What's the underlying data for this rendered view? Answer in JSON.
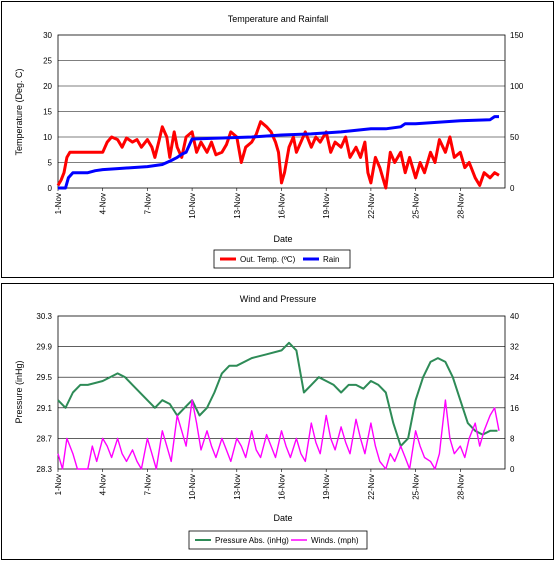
{
  "chart_data": [
    {
      "type": "line",
      "title": "Temperature and Rainfall",
      "xlabel": "Date",
      "ylabel": "Temperature (Deg. C)",
      "y2label": "",
      "ylim": [
        0,
        30
      ],
      "y2lim": [
        0,
        150
      ],
      "yticks": [
        "0",
        "5",
        "10",
        "15",
        "20",
        "25",
        "30"
      ],
      "y2ticks": [
        "0",
        "50",
        "100",
        "150"
      ],
      "xlim": [
        1,
        31
      ],
      "xticks": [
        {
          "day": 1,
          "label": "1-Nov"
        },
        {
          "day": 4,
          "label": "4-Nov"
        },
        {
          "day": 7,
          "label": "7-Nov"
        },
        {
          "day": 10,
          "label": "10-Nov"
        },
        {
          "day": 13,
          "label": "13-Nov"
        },
        {
          "day": 16,
          "label": "16-Nov"
        },
        {
          "day": 19,
          "label": "19-Nov"
        },
        {
          "day": 22,
          "label": "22-Nov"
        },
        {
          "day": 25,
          "label": "25-Nov"
        },
        {
          "day": 28,
          "label": "28-Nov"
        }
      ],
      "grid": true,
      "legend": "bottom",
      "series": [
        {
          "name": "Out. Temp. (ºC)",
          "axis": "left",
          "color": "#ff0000",
          "x": [
            1.0,
            1.2,
            1.4,
            1.6,
            1.8,
            2.0,
            2.5,
            3.0,
            3.5,
            4.0,
            4.3,
            4.6,
            5.0,
            5.3,
            5.6,
            6.0,
            6.3,
            6.6,
            7.0,
            7.3,
            7.5,
            7.8,
            8.0,
            8.3,
            8.5,
            8.8,
            9.0,
            9.3,
            9.6,
            10.0,
            10.3,
            10.6,
            11.0,
            11.3,
            11.6,
            12.0,
            12.3,
            12.6,
            13.0,
            13.3,
            13.6,
            14.0,
            14.3,
            14.6,
            15.0,
            15.3,
            15.6,
            15.8,
            16.0,
            16.2,
            16.5,
            16.8,
            17.0,
            17.3,
            17.6,
            18.0,
            18.3,
            18.6,
            19.0,
            19.3,
            19.6,
            20.0,
            20.3,
            20.6,
            21.0,
            21.3,
            21.6,
            21.8,
            22.0,
            22.3,
            22.6,
            23.0,
            23.3,
            23.6,
            24.0,
            24.3,
            24.6,
            25.0,
            25.3,
            25.6,
            26.0,
            26.3,
            26.6,
            27.0,
            27.3,
            27.6,
            28.0,
            28.3,
            28.6,
            29.0,
            29.3,
            29.6,
            30.0,
            30.3,
            30.6
          ],
          "values": [
            0.5,
            1.5,
            3,
            6,
            7,
            7,
            7,
            7,
            7,
            7,
            9,
            10,
            9.5,
            8,
            9.8,
            9,
            9.5,
            8,
            9.5,
            8,
            6,
            9.5,
            12,
            10,
            6,
            11,
            8,
            6,
            10,
            11,
            7,
            9,
            7,
            9,
            6.5,
            7,
            8.5,
            11,
            10,
            5,
            8,
            9,
            10.5,
            13,
            12,
            11,
            9,
            7,
            1,
            3,
            8,
            10,
            7,
            9,
            11,
            8,
            10,
            9,
            11,
            7,
            9,
            8,
            10,
            6,
            8,
            6,
            9,
            3,
            1,
            6,
            4,
            0,
            7,
            5,
            7,
            3,
            6,
            2,
            5,
            3,
            7,
            5,
            9.5,
            7,
            10,
            6,
            7,
            4,
            5,
            2,
            0.5,
            3,
            2,
            3,
            2.5
          ]
        },
        {
          "name": "Rain",
          "axis": "right",
          "color": "#0000ff",
          "x": [
            1.0,
            1.5,
            1.7,
            2.0,
            3.0,
            3.5,
            4.0,
            5.0,
            6.0,
            7.0,
            8.0,
            8.3,
            8.6,
            9.0,
            9.3,
            9.6,
            10.0,
            12.0,
            14.0,
            16.0,
            18.0,
            20.0,
            22.0,
            23.0,
            24.0,
            24.3,
            25.0,
            26.0,
            28.0,
            30.0,
            30.3,
            30.6
          ],
          "values": [
            0,
            0,
            10,
            15,
            15,
            17,
            18,
            19,
            20,
            21,
            23,
            25,
            27,
            30,
            33,
            35,
            48,
            49,
            50,
            52,
            53,
            55,
            58,
            58,
            60,
            63,
            63,
            64,
            66,
            67,
            70,
            70
          ]
        }
      ]
    },
    {
      "type": "line",
      "title": "Wind and Pressure",
      "xlabel": "Date",
      "ylabel": "Pressure (inHg)",
      "y2label": "",
      "ylim": [
        28.3,
        30.3
      ],
      "y2lim": [
        0,
        40
      ],
      "yticks": [
        "28.3",
        "28.7",
        "29.1",
        "29.5",
        "29.9",
        "30.3"
      ],
      "y2ticks": [
        "0",
        "8",
        "16",
        "24",
        "32",
        "40"
      ],
      "xlim": [
        1,
        31
      ],
      "xticks": [
        {
          "day": 1,
          "label": "1-Nov"
        },
        {
          "day": 4,
          "label": "4-Nov"
        },
        {
          "day": 7,
          "label": "7-Nov"
        },
        {
          "day": 10,
          "label": "10-Nov"
        },
        {
          "day": 13,
          "label": "13-Nov"
        },
        {
          "day": 16,
          "label": "16-Nov"
        },
        {
          "day": 19,
          "label": "19-Nov"
        },
        {
          "day": 22,
          "label": "22-Nov"
        },
        {
          "day": 25,
          "label": "25-Nov"
        },
        {
          "day": 28,
          "label": "28-Nov"
        }
      ],
      "grid": true,
      "legend": "bottom",
      "series": [
        {
          "name": "Pressure Abs. (inHg)",
          "axis": "left",
          "color": "#2e8b57",
          "x": [
            1.0,
            1.5,
            2.0,
            2.5,
            3.0,
            4.0,
            5.0,
            5.5,
            6.0,
            7.0,
            7.5,
            8.0,
            8.5,
            9.0,
            9.5,
            10.0,
            10.5,
            11.0,
            11.5,
            12.0,
            12.5,
            13.0,
            14.0,
            15.0,
            16.0,
            16.5,
            17.0,
            17.5,
            18.0,
            18.5,
            19.0,
            19.5,
            20.0,
            20.5,
            21.0,
            21.5,
            22.0,
            22.5,
            23.0,
            23.5,
            24.0,
            24.5,
            25.0,
            25.5,
            26.0,
            26.5,
            27.0,
            27.5,
            28.0,
            28.5,
            29.0,
            29.5,
            30.0,
            30.5
          ],
          "values": [
            29.2,
            29.1,
            29.3,
            29.4,
            29.4,
            29.45,
            29.55,
            29.5,
            29.4,
            29.2,
            29.1,
            29.2,
            29.15,
            29.0,
            29.1,
            29.2,
            29.0,
            29.1,
            29.3,
            29.55,
            29.65,
            29.65,
            29.75,
            29.8,
            29.85,
            29.95,
            29.85,
            29.3,
            29.4,
            29.5,
            29.45,
            29.4,
            29.3,
            29.4,
            29.4,
            29.35,
            29.45,
            29.4,
            29.3,
            28.9,
            28.6,
            28.7,
            29.2,
            29.5,
            29.7,
            29.75,
            29.7,
            29.5,
            29.2,
            28.9,
            28.8,
            28.75,
            28.8,
            28.8
          ]
        },
        {
          "name": "Winds. (mph)",
          "axis": "right",
          "color": "#ff00ff",
          "x": [
            1.0,
            1.3,
            1.6,
            2.0,
            2.3,
            2.6,
            3.0,
            3.3,
            3.6,
            4.0,
            4.3,
            4.6,
            5.0,
            5.3,
            5.6,
            6.0,
            6.3,
            6.6,
            7.0,
            7.3,
            7.6,
            8.0,
            8.3,
            8.6,
            9.0,
            9.3,
            9.6,
            10.0,
            10.3,
            10.6,
            11.0,
            11.3,
            11.6,
            12.0,
            12.3,
            12.6,
            13.0,
            13.3,
            13.6,
            14.0,
            14.3,
            14.6,
            15.0,
            15.3,
            15.6,
            16.0,
            16.3,
            16.6,
            17.0,
            17.3,
            17.6,
            18.0,
            18.3,
            18.6,
            19.0,
            19.3,
            19.6,
            20.0,
            20.3,
            20.6,
            21.0,
            21.3,
            21.6,
            22.0,
            22.3,
            22.6,
            23.0,
            23.3,
            23.6,
            24.0,
            24.3,
            24.6,
            25.0,
            25.3,
            25.6,
            26.0,
            26.3,
            26.6,
            27.0,
            27.3,
            27.6,
            28.0,
            28.3,
            28.6,
            29.0,
            29.3,
            29.6,
            30.0,
            30.3,
            30.6
          ],
          "values": [
            4,
            0,
            8,
            4,
            0,
            0,
            0,
            6,
            2,
            8,
            6,
            3,
            8,
            4,
            2,
            5,
            2,
            0,
            8,
            4,
            0,
            10,
            6,
            2,
            14,
            10,
            6,
            18,
            12,
            5,
            10,
            6,
            3,
            8,
            5,
            2,
            8,
            6,
            3,
            10,
            5,
            3,
            9,
            6,
            3,
            10,
            6,
            3,
            8,
            4,
            2,
            12,
            7,
            4,
            14,
            8,
            5,
            11,
            7,
            4,
            13,
            8,
            4,
            12,
            6,
            2,
            0,
            4,
            2,
            6,
            3,
            0,
            10,
            6,
            3,
            2,
            0,
            4,
            18,
            8,
            4,
            6,
            3,
            8,
            12,
            6,
            10,
            14,
            16,
            10
          ]
        }
      ]
    }
  ]
}
